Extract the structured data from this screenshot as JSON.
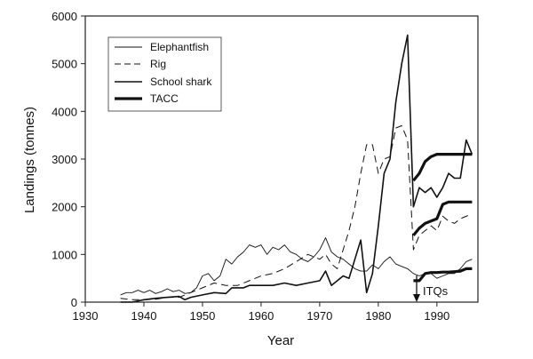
{
  "chart_data": {
    "type": "line",
    "title": "",
    "xlabel": "Year",
    "ylabel": "Landings (tonnes)",
    "xlim": [
      1930,
      1997
    ],
    "ylim": [
      0,
      6000
    ],
    "xticks": [
      1930,
      1940,
      1950,
      1960,
      1970,
      1980,
      1990
    ],
    "yticks": [
      0,
      1000,
      2000,
      3000,
      4000,
      5000,
      6000
    ],
    "grid": false,
    "legend_position": "upper-left",
    "annotations": [
      {
        "text": "ITQs",
        "x": 1986,
        "type": "down-arrow"
      }
    ],
    "series": [
      {
        "name": "Elephantfish",
        "style": "thin-solid",
        "x": [
          1936,
          1937,
          1938,
          1939,
          1940,
          1941,
          1942,
          1943,
          1944,
          1945,
          1946,
          1947,
          1948,
          1949,
          1950,
          1951,
          1952,
          1953,
          1954,
          1955,
          1956,
          1957,
          1958,
          1959,
          1960,
          1961,
          1962,
          1963,
          1964,
          1965,
          1966,
          1967,
          1968,
          1969,
          1970,
          1971,
          1972,
          1973,
          1974,
          1975,
          1976,
          1977,
          1978,
          1979,
          1980,
          1981,
          1982,
          1983,
          1984,
          1985,
          1986,
          1987,
          1988,
          1989,
          1990,
          1991,
          1992,
          1993,
          1994,
          1995,
          1996
        ],
        "values": [
          150,
          200,
          200,
          250,
          200,
          250,
          180,
          220,
          280,
          220,
          250,
          180,
          200,
          300,
          550,
          600,
          450,
          550,
          900,
          800,
          950,
          1050,
          1200,
          1150,
          1200,
          1000,
          1150,
          1100,
          1200,
          1050,
          1000,
          900,
          850,
          950,
          1100,
          1350,
          1050,
          950,
          900,
          800,
          700,
          650,
          650,
          780,
          700,
          850,
          950,
          800,
          750,
          700,
          600,
          550,
          600,
          600,
          500,
          550,
          600,
          600,
          700,
          850,
          900
        ]
      },
      {
        "name": "Rig",
        "style": "dashed",
        "x": [
          1936,
          1938,
          1940,
          1942,
          1944,
          1946,
          1948,
          1950,
          1952,
          1954,
          1956,
          1958,
          1960,
          1962,
          1964,
          1966,
          1968,
          1970,
          1971,
          1972,
          1973,
          1974,
          1975,
          1976,
          1977,
          1978,
          1979,
          1980,
          1981,
          1982,
          1983,
          1984,
          1985,
          1986,
          1987,
          1988,
          1989,
          1990,
          1991,
          1992,
          1993,
          1994,
          1995,
          1996
        ],
        "values": [
          80,
          50,
          50,
          60,
          100,
          100,
          200,
          300,
          400,
          350,
          350,
          450,
          550,
          600,
          700,
          850,
          1000,
          900,
          1000,
          800,
          700,
          1100,
          1500,
          2000,
          2700,
          3300,
          3300,
          2700,
          3000,
          3050,
          3650,
          3700,
          3400,
          1100,
          1400,
          1500,
          1600,
          1500,
          1800,
          1700,
          1650,
          1750,
          1800,
          1850
        ]
      },
      {
        "name": "School shark",
        "style": "solid",
        "x": [
          1936,
          1938,
          1940,
          1942,
          1944,
          1946,
          1947,
          1948,
          1950,
          1952,
          1954,
          1955,
          1956,
          1957,
          1958,
          1960,
          1962,
          1964,
          1966,
          1968,
          1970,
          1971,
          1972,
          1973,
          1974,
          1975,
          1976,
          1977,
          1978,
          1979,
          1980,
          1981,
          1982,
          1983,
          1984,
          1985,
          1986,
          1987,
          1988,
          1989,
          1990,
          1991,
          1992,
          1993,
          1994,
          1995,
          1996
        ],
        "values": [
          0,
          0,
          50,
          80,
          100,
          120,
          50,
          100,
          150,
          200,
          180,
          300,
          300,
          300,
          350,
          350,
          350,
          400,
          350,
          400,
          450,
          650,
          350,
          450,
          550,
          500,
          900,
          1300,
          200,
          600,
          1600,
          2700,
          3000,
          4200,
          5000,
          5600,
          2000,
          2400,
          2300,
          2400,
          2200,
          2400,
          2700,
          2600,
          2600,
          3400,
          3100
        ]
      },
      {
        "name": "TACC",
        "style": "thick-solid",
        "groups": [
          {
            "x": [
              1986,
              1987,
              1988,
              1989,
              1990,
              1991,
              1992,
              1993,
              1994,
              1995,
              1996
            ],
            "values": [
              2550,
              2700,
              2950,
              3050,
              3100,
              3100,
              3100,
              3100,
              3100,
              3100,
              3100
            ]
          },
          {
            "x": [
              1986,
              1987,
              1988,
              1989,
              1990,
              1991,
              1992,
              1993,
              1994,
              1995,
              1996
            ],
            "values": [
              1400,
              1550,
              1650,
              1700,
              1750,
              2050,
              2100,
              2100,
              2100,
              2100,
              2100
            ]
          },
          {
            "x": [
              1986,
              1987,
              1988,
              1989,
              1990,
              1991,
              1992,
              1993,
              1994,
              1995,
              1996
            ],
            "values": [
              450,
              450,
              600,
              620,
              620,
              630,
              630,
              640,
              650,
              700,
              700
            ]
          }
        ]
      }
    ]
  },
  "axes": {
    "xlabel": "Year",
    "ylabel": "Landings (tonnes)",
    "xtick_labels": [
      "1930",
      "1940",
      "1950",
      "1960",
      "1970",
      "1980",
      "1990"
    ],
    "ytick_labels": [
      "0",
      "1000",
      "2000",
      "3000",
      "4000",
      "5000",
      "6000"
    ]
  },
  "legend": {
    "items": [
      {
        "label": "Elephantfish",
        "style": "thin-solid"
      },
      {
        "label": "Rig",
        "style": "dashed"
      },
      {
        "label": "School shark",
        "style": "solid"
      },
      {
        "label": "TACC",
        "style": "thick-solid"
      }
    ]
  },
  "annotation": {
    "label": "ITQs"
  }
}
